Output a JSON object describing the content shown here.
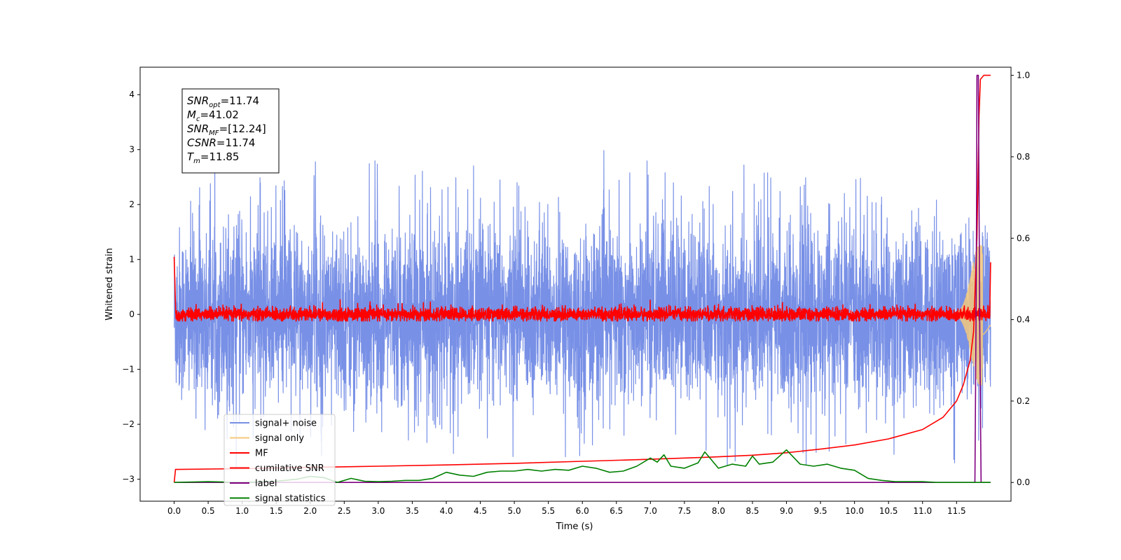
{
  "chart_data": {
    "type": "line",
    "xlabel": "Time (s)",
    "ylabel": "Whitened strain",
    "xlim": [
      -0.5,
      12.3
    ],
    "ylim": [
      -3.4,
      4.5
    ],
    "y2lim": [
      -0.046,
      1.02
    ],
    "x_ticks": [
      "0.0",
      "0.5",
      "1.0",
      "1.5",
      "2.0",
      "2.5",
      "3.0",
      "3.5",
      "4.0",
      "4.5",
      "5.0",
      "5.5",
      "6.0",
      "6.5",
      "7.0",
      "7.5",
      "8.0",
      "8.5",
      "9.0",
      "9.5",
      "10.0",
      "10.5",
      "11.0",
      "11.5"
    ],
    "y_ticks": [
      "−3",
      "−2",
      "−1",
      "0",
      "1",
      "2",
      "3",
      "4"
    ],
    "y2_ticks": [
      "0.0",
      "0.2",
      "0.4",
      "0.6",
      "0.8",
      "1.0"
    ],
    "grid": false,
    "legend_position": "lower-left",
    "annotation": {
      "lines": [
        {
          "base": "SNR",
          "sub": "opt",
          "value": "=11.74"
        },
        {
          "base": "M",
          "sub": "c",
          "value": "=41.02"
        },
        {
          "base": "SNR",
          "sub": "MF",
          "value": "=[12.24]"
        },
        {
          "base": "CSNR",
          "sub": "",
          "value": "=11.74"
        },
        {
          "base": "T",
          "sub": "m",
          "value": "=11.85"
        }
      ]
    },
    "series": [
      {
        "name": "signal+ noise",
        "color": "#7890e6",
        "axis": "left",
        "style": "noise",
        "x_range": [
          0.0,
          12.0
        ],
        "amplitude_sd": 0.78,
        "spikes_max": 3.0,
        "spikes_min": -3.0
      },
      {
        "name": "signal only",
        "color": "#f5c97a",
        "axis": "left",
        "style": "chirp",
        "x_range": [
          11.3,
          12.0
        ],
        "peak_time": 11.85,
        "peak_amplitude": 1.3
      },
      {
        "name": "MF",
        "color": "#ff0000",
        "axis": "left",
        "style": "mf",
        "x_range": [
          0.0,
          12.0
        ],
        "start_value": 1.0,
        "band": [
          -0.1,
          0.1
        ],
        "end_value": 0.95
      },
      {
        "name": "cumilative SNR",
        "color": "#ff0000",
        "axis": "right",
        "x": [
          0.0,
          0.01,
          0.02,
          1.0,
          2.0,
          3.0,
          4.0,
          5.0,
          6.0,
          7.0,
          8.0,
          8.5,
          9.0,
          9.5,
          10.0,
          10.5,
          11.0,
          11.3,
          11.5,
          11.6,
          11.7,
          11.75,
          11.8,
          11.83,
          11.85,
          11.9,
          12.0
        ],
        "y": [
          0.0,
          0.015,
          0.032,
          0.034,
          0.037,
          0.04,
          0.043,
          0.047,
          0.052,
          0.057,
          0.063,
          0.067,
          0.073,
          0.082,
          0.092,
          0.107,
          0.13,
          0.16,
          0.2,
          0.24,
          0.3,
          0.37,
          0.6,
          0.9,
          0.99,
          1.0,
          1.0
        ]
      },
      {
        "name": "label",
        "color": "#800080",
        "axis": "right",
        "x": [
          0.0,
          11.77,
          11.79,
          11.8,
          11.82,
          11.84,
          11.86,
          11.9,
          12.0
        ],
        "y": [
          0.0,
          0.0,
          0.5,
          1.0,
          1.0,
          0.4,
          0.0,
          0.0,
          0.0
        ]
      },
      {
        "name": "signal statistics",
        "color": "#008000",
        "axis": "right",
        "x": [
          0.0,
          0.5,
          1.0,
          1.5,
          1.8,
          2.0,
          2.2,
          2.4,
          2.6,
          2.8,
          3.0,
          3.2,
          3.4,
          3.6,
          3.8,
          4.0,
          4.2,
          4.4,
          4.6,
          4.8,
          5.0,
          5.2,
          5.4,
          5.6,
          5.8,
          6.0,
          6.2,
          6.4,
          6.6,
          6.8,
          7.0,
          7.1,
          7.2,
          7.3,
          7.5,
          7.7,
          7.8,
          8.0,
          8.2,
          8.4,
          8.5,
          8.6,
          8.8,
          9.0,
          9.2,
          9.4,
          9.6,
          9.8,
          10.0,
          10.2,
          10.4,
          10.6,
          10.8,
          11.0,
          11.2,
          11.4,
          11.6,
          11.8,
          11.9,
          12.0
        ],
        "y": [
          0.0,
          0.002,
          0.0,
          0.003,
          0.008,
          0.015,
          0.012,
          0.0,
          0.01,
          0.003,
          0.002,
          0.003,
          0.005,
          0.005,
          0.01,
          0.025,
          0.018,
          0.015,
          0.025,
          0.028,
          0.028,
          0.032,
          0.028,
          0.032,
          0.03,
          0.04,
          0.035,
          0.025,
          0.028,
          0.04,
          0.06,
          0.05,
          0.068,
          0.04,
          0.035,
          0.048,
          0.075,
          0.035,
          0.045,
          0.04,
          0.065,
          0.045,
          0.05,
          0.08,
          0.045,
          0.04,
          0.045,
          0.035,
          0.03,
          0.01,
          0.005,
          0.002,
          0.002,
          0.002,
          0.0,
          0.0,
          0.0,
          0.0,
          0.0,
          0.0
        ]
      }
    ]
  }
}
